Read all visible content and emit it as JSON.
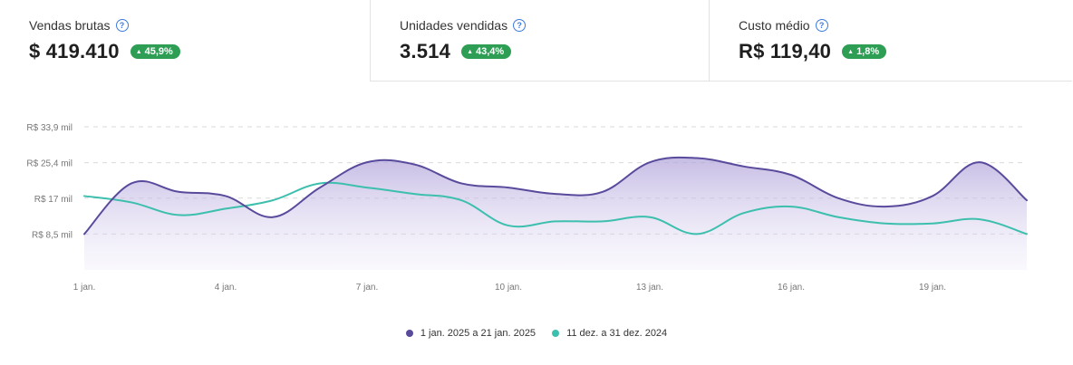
{
  "kpis": [
    {
      "label": "Vendas brutas",
      "value": "$ 419.410",
      "change": "45,9%"
    },
    {
      "label": "Unidades vendidas",
      "value": "3.514",
      "change": "43,4%"
    },
    {
      "label": "Custo médio",
      "value": "R$ 119,40",
      "change": "1,8%"
    }
  ],
  "colors": {
    "current": "#5a4a9c",
    "previous": "#3dbfae",
    "badge": "#2e9e55",
    "grid": "#d9d9d9"
  },
  "chart_data": {
    "type": "area",
    "y_ticks": [
      "R$ 33,9 mil",
      "R$ 25,4 mil",
      "R$ 17 mil",
      "R$ 8,5 mil"
    ],
    "y_tick_values": [
      33.9,
      25.4,
      17,
      8.5
    ],
    "x_ticks": [
      "1 jan.",
      "4 jan.",
      "7 jan.",
      "10 jan.",
      "13 jan.",
      "16 jan.",
      "19 jan."
    ],
    "x_tick_days": [
      1,
      4,
      7,
      10,
      13,
      16,
      19
    ],
    "ylim": [
      0,
      33.9
    ],
    "x_range": [
      1,
      21
    ],
    "grid": true,
    "legend_position": "bottom",
    "series": [
      {
        "name": "1 jan. 2025 a 21 jan. 2025",
        "x": [
          1,
          2,
          3,
          4,
          5,
          6,
          7,
          8,
          9,
          10,
          11,
          12,
          13,
          14,
          15,
          16,
          17,
          18,
          19,
          20,
          21
        ],
        "values": [
          8.5,
          20.5,
          18.5,
          17.5,
          12.5,
          19.5,
          25.5,
          25.0,
          20.5,
          19.5,
          18.0,
          18.5,
          25.5,
          26.5,
          24.5,
          22.5,
          17.0,
          15.0,
          17.5,
          25.5,
          16.5
        ]
      },
      {
        "name": "11 dez. a 31 dez. 2024",
        "x": [
          1,
          2,
          3,
          4,
          5,
          6,
          7,
          8,
          9,
          10,
          11,
          12,
          13,
          14,
          15,
          16,
          17,
          18,
          19,
          20,
          21
        ],
        "values": [
          17.5,
          16.0,
          13.0,
          14.5,
          16.5,
          20.5,
          19.5,
          18.0,
          16.5,
          10.5,
          11.5,
          11.5,
          12.5,
          8.5,
          13.5,
          15.0,
          12.5,
          11.0,
          11.0,
          12.0,
          8.5
        ]
      }
    ]
  }
}
